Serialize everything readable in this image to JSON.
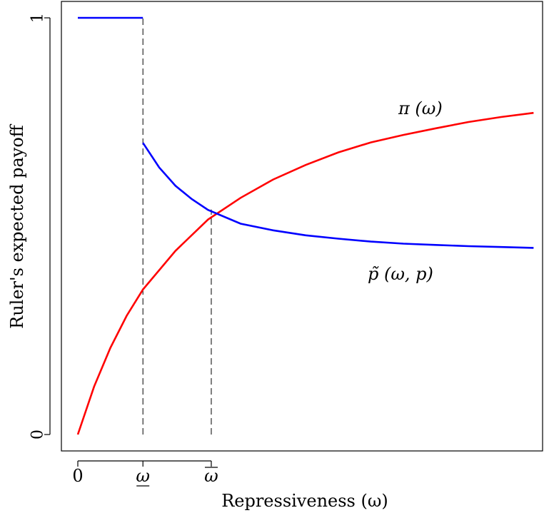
{
  "chart_data": {
    "type": "line",
    "title": "",
    "xlabel": "Repressiveness (ω)",
    "ylabel": "Ruler's expected payoff",
    "xlim": [
      0,
      7
    ],
    "ylim": [
      0,
      1
    ],
    "grid": false,
    "legend": "none",
    "x_ticks": [
      {
        "value": 0,
        "label": "0"
      },
      {
        "value": 1,
        "label": "ω"
      },
      {
        "value": 2.05,
        "label": "ω"
      }
    ],
    "y_ticks": [
      {
        "value": 0,
        "label": "0"
      },
      {
        "value": 1,
        "label": "1"
      }
    ],
    "series": [
      {
        "label": "π (ω)",
        "color": "#ff0000",
        "x": [
          0,
          0.25,
          0.5,
          0.75,
          1,
          1.5,
          2,
          2.5,
          3,
          3.5,
          4,
          4.5,
          5,
          5.5,
          6,
          6.5,
          7
        ],
        "y": [
          0,
          0.115,
          0.208,
          0.285,
          0.348,
          0.441,
          0.516,
          0.568,
          0.612,
          0.647,
          0.677,
          0.701,
          0.719,
          0.735,
          0.75,
          0.762,
          0.772
        ]
      },
      {
        "label": "p̃ (ω, p)",
        "color": "#0000ff",
        "segments": [
          {
            "x": [
              0,
              1
            ],
            "y": [
              1,
              1
            ]
          },
          {
            "x": [
              1,
              1.25,
              1.5,
              1.75,
              2,
              2.5,
              3,
              3.5,
              4,
              4.5,
              5,
              5.5,
              6,
              6.5,
              7
            ],
            "y": [
              0.7,
              0.641,
              0.597,
              0.565,
              0.539,
              0.506,
              0.49,
              0.478,
              0.47,
              0.463,
              0.458,
              0.455,
              0.452,
              0.45,
              0.448
            ]
          }
        ]
      }
    ],
    "reference_lines": [
      {
        "x": 1,
        "y_from": 0,
        "y_to": 1,
        "style": "dashed"
      },
      {
        "x": 2.05,
        "y_from": 0,
        "y_to": 0.54,
        "style": "dashed"
      }
    ]
  }
}
